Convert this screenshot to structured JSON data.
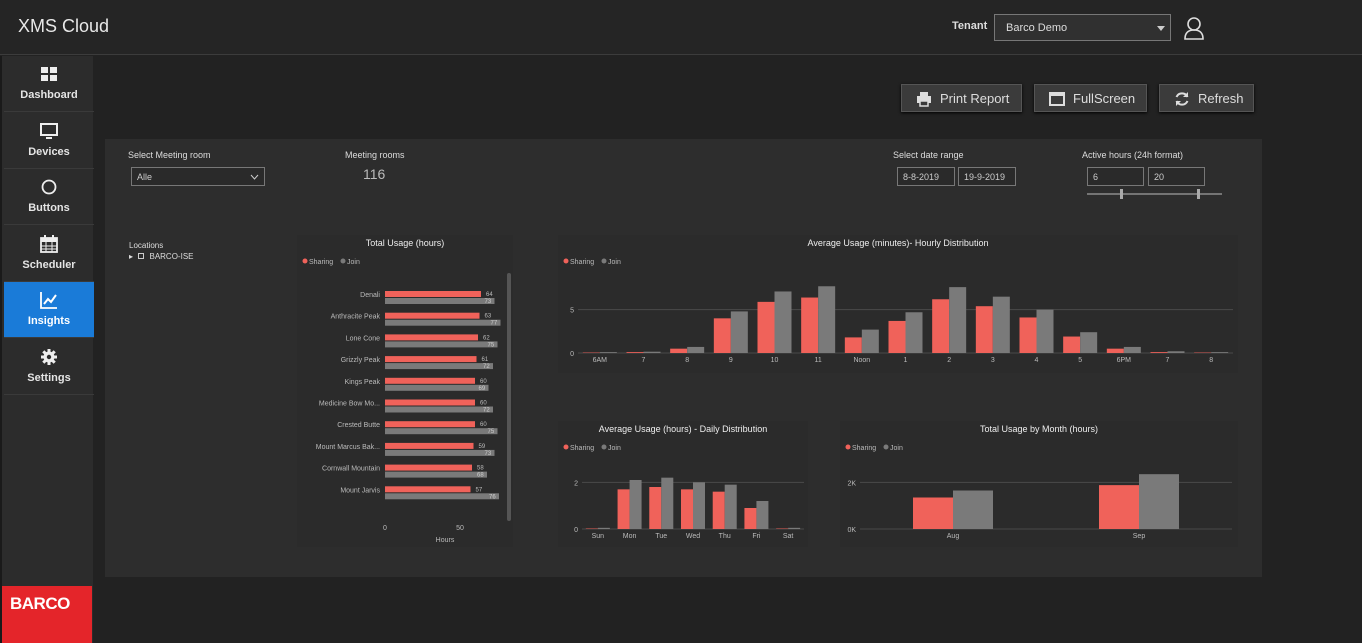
{
  "app": {
    "title": "XMS Cloud"
  },
  "header": {
    "tenant_label": "Tenant",
    "tenant_value": "Barco Demo"
  },
  "sidebar": {
    "items": [
      {
        "label": "Dashboard",
        "icon": "grid-icon"
      },
      {
        "label": "Devices",
        "icon": "monitor-icon"
      },
      {
        "label": "Buttons",
        "icon": "circle-icon"
      },
      {
        "label": "Scheduler",
        "icon": "calendar-icon"
      },
      {
        "label": "Insights",
        "icon": "line-chart-icon",
        "active": true
      },
      {
        "label": "Settings",
        "icon": "gear-icon"
      }
    ],
    "logo": "BARCO"
  },
  "toolbar": {
    "print_label": "Print Report",
    "fullscreen_label": "FullScreen",
    "refresh_label": "Refresh"
  },
  "filters": {
    "meeting_room_label": "Select Meeting room",
    "meeting_room_value": "Alle",
    "meeting_rooms_label": "Meeting rooms",
    "meeting_rooms_count": "116",
    "date_range_label": "Select date range",
    "date_from": "8-8-2019",
    "date_to": "19-9-2019",
    "active_hours_label": "Active hours (24h format)",
    "hours_from": "6",
    "hours_to": "20",
    "hours_slider": {
      "min": 0,
      "max": 24,
      "low": 6,
      "high": 20
    }
  },
  "locations": {
    "label": "Locations",
    "items": [
      "BARCO-ISE"
    ]
  },
  "colors": {
    "sharing": "#f0625a",
    "join": "#7a7a7a",
    "accent": "#1a7bd8",
    "brand": "#e4252a"
  },
  "chart_data": [
    {
      "type": "bar",
      "orientation": "horizontal",
      "title": "Total Usage (hours)",
      "xlabel": "Hours",
      "legend": [
        "Sharing",
        "Join"
      ],
      "categories": [
        "Denali",
        "Anthracite Peak",
        "Lone Cone",
        "Grizzly Peak",
        "Kings Peak",
        "Medicine Bow Mo...",
        "Crested Butte",
        "Mount Marcus Bak...",
        "Cornwall Mountain",
        "Mount Jarvis"
      ],
      "series": [
        {
          "name": "Sharing",
          "values": [
            64,
            63,
            62,
            61,
            60,
            60,
            60,
            59,
            58,
            57
          ]
        },
        {
          "name": "Join",
          "values": [
            73,
            77,
            75,
            72,
            69,
            72,
            75,
            73,
            68,
            76
          ]
        }
      ],
      "xticks": [
        "0",
        "50"
      ],
      "xlim": [
        0,
        80
      ]
    },
    {
      "type": "bar",
      "title": "Average Usage (minutes)- Hourly Distribution",
      "legend": [
        "Sharing",
        "Join"
      ],
      "categories": [
        "6AM",
        "7",
        "8",
        "9",
        "10",
        "11",
        "Noon",
        "1",
        "2",
        "3",
        "4",
        "5",
        "6PM",
        "7",
        "8"
      ],
      "series": [
        {
          "name": "Sharing",
          "values": [
            0.05,
            0.1,
            0.5,
            4.0,
            5.9,
            6.4,
            1.8,
            3.7,
            6.2,
            5.4,
            4.1,
            1.9,
            0.5,
            0.1,
            0.05
          ]
        },
        {
          "name": "Join",
          "values": [
            0.1,
            0.15,
            0.7,
            4.8,
            7.1,
            7.7,
            2.7,
            4.7,
            7.6,
            6.5,
            5.0,
            2.4,
            0.7,
            0.2,
            0.1
          ]
        }
      ],
      "yticks": [
        "0",
        "5"
      ],
      "ylim": [
        0,
        9
      ]
    },
    {
      "type": "bar",
      "title": "Average Usage (hours) - Daily Distribution",
      "legend": [
        "Sharing",
        "Join"
      ],
      "categories": [
        "Sun",
        "Mon",
        "Tue",
        "Wed",
        "Thu",
        "Fri",
        "Sat"
      ],
      "series": [
        {
          "name": "Sharing",
          "values": [
            0.02,
            1.7,
            1.8,
            1.7,
            1.6,
            0.9,
            0.02
          ]
        },
        {
          "name": "Join",
          "values": [
            0.05,
            2.1,
            2.2,
            2.0,
            1.9,
            1.2,
            0.05
          ]
        }
      ],
      "yticks": [
        "0",
        "2"
      ],
      "ylim": [
        0,
        3
      ]
    },
    {
      "type": "bar",
      "title": "Total Usage by Month (hours)",
      "legend": [
        "Sharing",
        "Join"
      ],
      "categories": [
        "Aug",
        "Sep"
      ],
      "series": [
        {
          "name": "Sharing",
          "values": [
            1350,
            1880
          ]
        },
        {
          "name": "Join",
          "values": [
            1650,
            2350
          ]
        }
      ],
      "yticks": [
        "0K",
        "2K"
      ],
      "ylim": [
        0,
        3000
      ]
    }
  ]
}
